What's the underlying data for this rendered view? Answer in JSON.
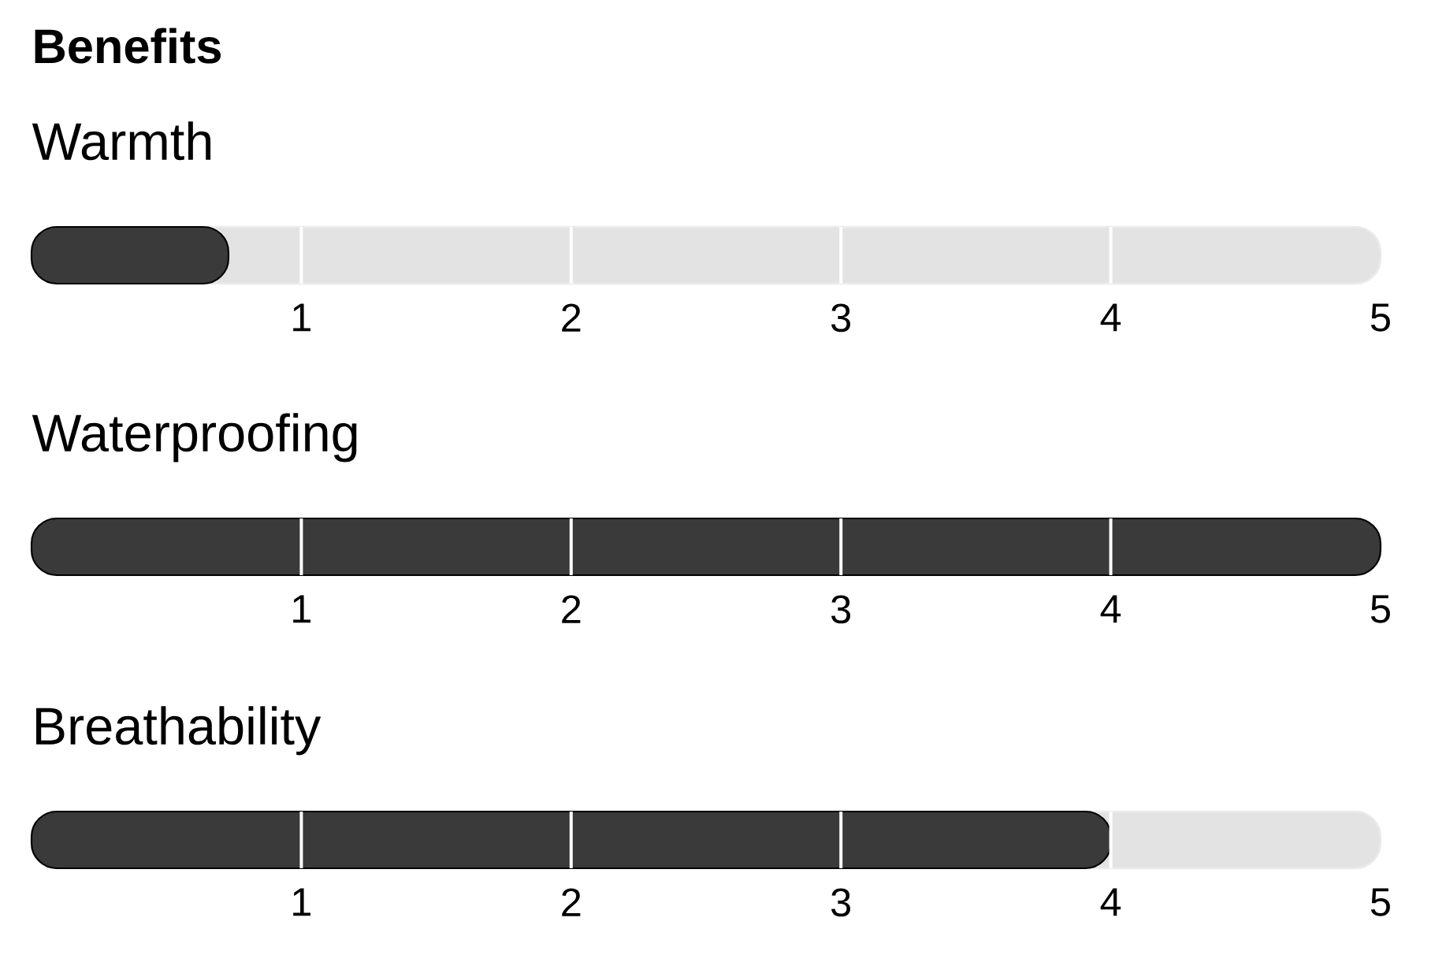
{
  "chart_data": [
    {
      "type": "bar",
      "orientation": "horizontal",
      "title": "Benefits",
      "categories": [
        "Warmth"
      ],
      "values": [
        0.73
      ],
      "color": "#3a3a3a",
      "xlim": [
        0,
        5
      ],
      "xticks": [
        1,
        2,
        3,
        4,
        5
      ],
      "ref_lines": [
        {
          "axis": "x",
          "value": 1,
          "color": "#ffffff"
        },
        {
          "axis": "x",
          "value": 2,
          "color": "#ffffff"
        },
        {
          "axis": "x",
          "value": 3,
          "color": "#ffffff"
        },
        {
          "axis": "x",
          "value": 4,
          "color": "#ffffff"
        }
      ]
    },
    {
      "type": "bar",
      "orientation": "horizontal",
      "categories": [
        "Waterproofing"
      ],
      "values": [
        5
      ],
      "color": "#3a3a3a",
      "xlim": [
        0,
        5
      ],
      "xticks": [
        1,
        2,
        3,
        4,
        5
      ],
      "ref_lines": [
        {
          "axis": "x",
          "value": 1,
          "color": "#ffffff"
        },
        {
          "axis": "x",
          "value": 2,
          "color": "#ffffff"
        },
        {
          "axis": "x",
          "value": 3,
          "color": "#ffffff"
        },
        {
          "axis": "x",
          "value": 4,
          "color": "#ffffff"
        }
      ]
    },
    {
      "type": "bar",
      "orientation": "horizontal",
      "categories": [
        "Breathability"
      ],
      "values": [
        4
      ],
      "color": "#3a3a3a",
      "xlim": [
        0,
        5
      ],
      "xticks": [
        1,
        2,
        3,
        4,
        5
      ],
      "ref_lines": [
        {
          "axis": "x",
          "value": 1,
          "color": "#ffffff"
        },
        {
          "axis": "x",
          "value": 2,
          "color": "#ffffff"
        },
        {
          "axis": "x",
          "value": 3,
          "color": "#ffffff"
        },
        {
          "axis": "x",
          "value": 4,
          "color": "#ffffff"
        }
      ]
    }
  ]
}
